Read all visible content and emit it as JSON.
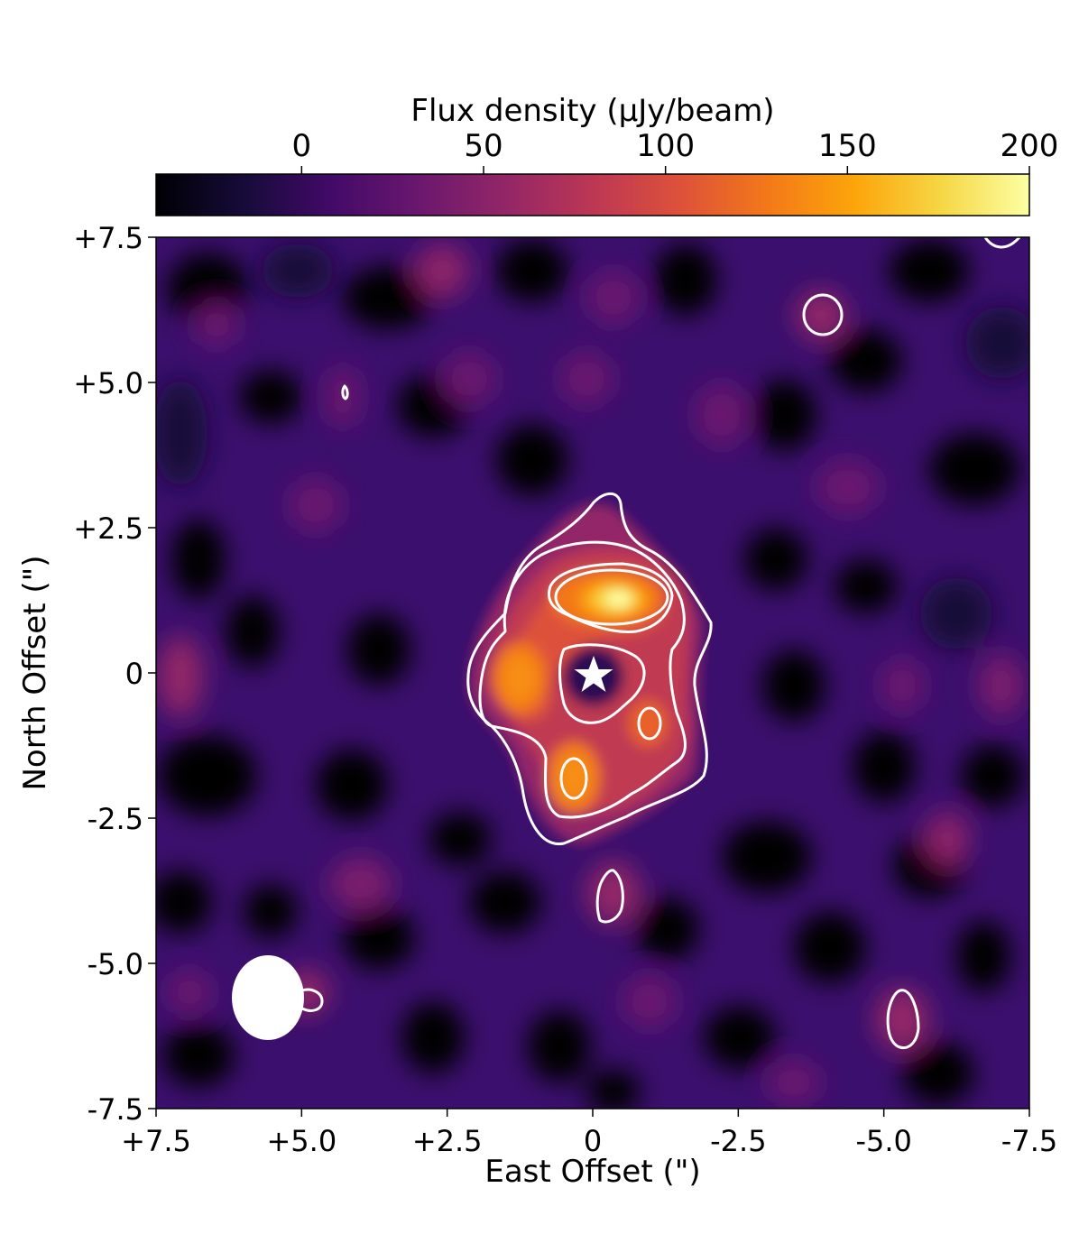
{
  "chart_data": {
    "type": "heatmap",
    "title": "",
    "colorbar": {
      "label": "Flux density (μJy/beam)",
      "colormap": "inferno",
      "range": [
        -40,
        200
      ],
      "ticks": [
        {
          "value": 0,
          "label": "0"
        },
        {
          "value": 50,
          "label": "50"
        },
        {
          "value": 100,
          "label": "100"
        },
        {
          "value": 150,
          "label": "150"
        },
        {
          "value": 200,
          "label": "200"
        }
      ]
    },
    "xlabel": "East Offset (\")",
    "ylabel": "North Offset (\")",
    "xlim": [
      7.5,
      -7.5
    ],
    "ylim": [
      -7.5,
      7.5
    ],
    "xticks": [
      {
        "value": 7.5,
        "label": "+7.5"
      },
      {
        "value": 5.0,
        "label": "+5.0"
      },
      {
        "value": 2.5,
        "label": "+2.5"
      },
      {
        "value": 0,
        "label": "0"
      },
      {
        "value": -2.5,
        "label": "-2.5"
      },
      {
        "value": -5.0,
        "label": "-5.0"
      },
      {
        "value": -7.5,
        "label": "-7.5"
      }
    ],
    "yticks": [
      {
        "value": 7.5,
        "label": "+7.5"
      },
      {
        "value": 5.0,
        "label": "+5.0"
      },
      {
        "value": 2.5,
        "label": "+2.5"
      },
      {
        "value": 0,
        "label": "0"
      },
      {
        "value": -2.5,
        "label": "-2.5"
      },
      {
        "value": -5.0,
        "label": "-5.0"
      },
      {
        "value": -7.5,
        "label": "-7.5"
      }
    ],
    "emission_peaks": [
      {
        "x": -0.3,
        "y": 1.3,
        "value": 195
      },
      {
        "x": 1.3,
        "y": -0.1,
        "value": 150
      },
      {
        "x": 0.3,
        "y": -1.8,
        "value": 150
      },
      {
        "x": -1.0,
        "y": -0.9,
        "value": 135
      }
    ],
    "star": {
      "x": 0,
      "y": 0,
      "symbol": "star",
      "color": "#ffffff"
    },
    "beam": {
      "x": 5.6,
      "y": -5.6,
      "major_arcsec": 1.45,
      "minor_arcsec": 1.2,
      "color": "#ffffff"
    },
    "contour_color": "#ffffff"
  }
}
